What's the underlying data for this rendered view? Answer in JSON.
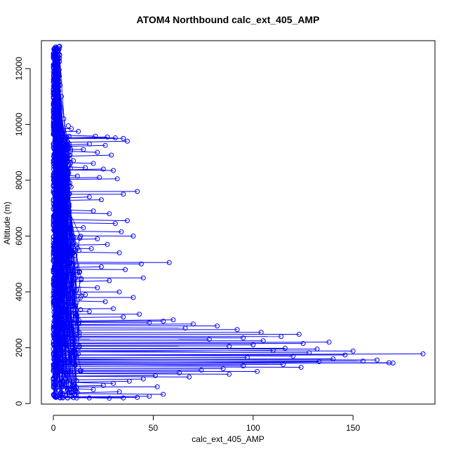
{
  "chart_data": {
    "type": "scatter",
    "title": "ATOM4 Northbound calc_ext_405_AMP",
    "xlabel": "calc_ext_405_AMP",
    "ylabel": "Altitude (m)",
    "xlim": [
      -6,
      191
    ],
    "ylim": [
      -20,
      13000
    ],
    "xticks": [
      0,
      50,
      100,
      150
    ],
    "yticks": [
      0,
      2000,
      4000,
      6000,
      8000,
      10000,
      12000
    ],
    "grid": false,
    "series_color": "#0000ff",
    "marker": "open-circle",
    "connected_by_lines": true,
    "points": [
      [
        2.8,
        12780
      ],
      [
        2.6,
        12650
      ],
      [
        3.1,
        12500
      ],
      [
        2.4,
        12200
      ],
      [
        2.9,
        11950
      ],
      [
        2.2,
        11700
      ],
      [
        3.4,
        11400
      ],
      [
        2.7,
        11200
      ],
      [
        4.0,
        11000
      ],
      [
        2.1,
        10800
      ],
      [
        3.6,
        10600
      ],
      [
        2.3,
        10400
      ],
      [
        5.2,
        10200
      ],
      [
        1.8,
        10050
      ],
      [
        7.5,
        9950
      ],
      [
        9.0,
        9850
      ],
      [
        12.5,
        9750
      ],
      [
        3.0,
        9650
      ],
      [
        21.0,
        9580
      ],
      [
        27.0,
        9550
      ],
      [
        31.0,
        9520
      ],
      [
        35.0,
        9500
      ],
      [
        37.0,
        9400
      ],
      [
        2.5,
        9450
      ],
      [
        18.0,
        9300
      ],
      [
        26.0,
        9250
      ],
      [
        15.0,
        9100
      ],
      [
        22.0,
        9000
      ],
      [
        29.0,
        8900
      ],
      [
        4.0,
        8800
      ],
      [
        10.0,
        8700
      ],
      [
        20.0,
        8600
      ],
      [
        16.0,
        8450
      ],
      [
        25.0,
        8400
      ],
      [
        30.0,
        8350
      ],
      [
        3.5,
        8300
      ],
      [
        12.0,
        8150
      ],
      [
        23.0,
        8100
      ],
      [
        32.0,
        8050
      ],
      [
        2.0,
        8000
      ],
      [
        8.0,
        7800
      ],
      [
        42.0,
        7600
      ],
      [
        35.0,
        7500
      ],
      [
        18.0,
        7400
      ],
      [
        24.0,
        7300
      ],
      [
        5.0,
        7100
      ],
      [
        20.0,
        6900
      ],
      [
        28.0,
        6800
      ],
      [
        3.5,
        6600
      ],
      [
        37.0,
        6550
      ],
      [
        31.0,
        6450
      ],
      [
        15.0,
        6300
      ],
      [
        34.0,
        6150
      ],
      [
        40.0,
        6000
      ],
      [
        22.0,
        5900
      ],
      [
        6.0,
        5800
      ],
      [
        27.0,
        5700
      ],
      [
        19.0,
        5550
      ],
      [
        33.0,
        5400
      ],
      [
        3.0,
        5300
      ],
      [
        58.0,
        5050
      ],
      [
        44.0,
        5000
      ],
      [
        24.0,
        4900
      ],
      [
        36.0,
        4800
      ],
      [
        13.0,
        4700
      ],
      [
        45.0,
        4500
      ],
      [
        28.0,
        4400
      ],
      [
        4.0,
        4300
      ],
      [
        22.0,
        4150
      ],
      [
        33.0,
        4000
      ],
      [
        16.0,
        3900
      ],
      [
        40.0,
        3800
      ],
      [
        26.0,
        3650
      ],
      [
        5.0,
        3550
      ],
      [
        30.0,
        3400
      ],
      [
        18.0,
        3300
      ],
      [
        43.0,
        3200
      ],
      [
        35.0,
        3100
      ],
      [
        60.0,
        3000
      ],
      [
        55.0,
        2950
      ],
      [
        48.0,
        2900
      ],
      [
        70.0,
        2850
      ],
      [
        82.0,
        2780
      ],
      [
        66.0,
        2700
      ],
      [
        92.0,
        2650
      ],
      [
        104.0,
        2550
      ],
      [
        123.0,
        2480
      ],
      [
        114.0,
        2400
      ],
      [
        95.0,
        2350
      ],
      [
        78.0,
        2300
      ],
      [
        105.0,
        2250
      ],
      [
        138.0,
        2200
      ],
      [
        125.0,
        2150
      ],
      [
        100.0,
        2100
      ],
      [
        88.0,
        2050
      ],
      [
        116.0,
        1980
      ],
      [
        132.0,
        1950
      ],
      [
        110.0,
        1900
      ],
      [
        150.0,
        1880
      ],
      [
        128.0,
        1820
      ],
      [
        185.0,
        1780
      ],
      [
        146.0,
        1740
      ],
      [
        120.0,
        1700
      ],
      [
        97.0,
        1650
      ],
      [
        140.0,
        1600
      ],
      [
        162.0,
        1560
      ],
      [
        155.0,
        1520
      ],
      [
        133.0,
        1500
      ],
      [
        168.0,
        1460
      ],
      [
        170.0,
        1450
      ],
      [
        115.0,
        1400
      ],
      [
        95.0,
        1350
      ],
      [
        124.0,
        1300
      ],
      [
        85.0,
        1250
      ],
      [
        74.0,
        1200
      ],
      [
        102.0,
        1150
      ],
      [
        63.0,
        1100
      ],
      [
        88.0,
        1050
      ],
      [
        51.0,
        1000
      ],
      [
        68.0,
        950
      ],
      [
        45.0,
        880
      ],
      [
        38.0,
        800
      ],
      [
        30.0,
        720
      ],
      [
        25.0,
        650
      ],
      [
        52.0,
        600
      ],
      [
        20.0,
        500
      ],
      [
        33.0,
        420
      ],
      [
        55.0,
        330
      ],
      [
        48.0,
        260
      ],
      [
        42.0,
        220
      ],
      [
        35.0,
        200
      ],
      [
        28.0,
        190
      ],
      [
        18.0,
        200
      ],
      [
        10.0,
        210
      ],
      [
        5.0,
        230
      ],
      [
        2.0,
        250
      ]
    ]
  }
}
